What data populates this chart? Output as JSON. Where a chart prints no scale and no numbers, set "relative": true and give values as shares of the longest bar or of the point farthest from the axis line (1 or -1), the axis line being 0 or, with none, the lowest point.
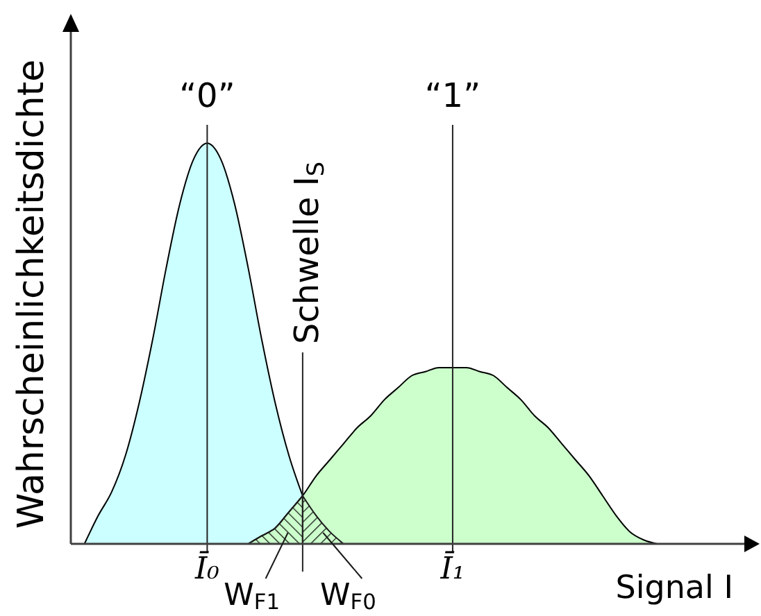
{
  "chart_data": {
    "type": "area",
    "relative": true,
    "grid": "x",
    "legend": "bottom",
    "xlabel": "Signal I",
    "ylabel": "Wahrscheinlichkeitsdichte",
    "categories": [
      null,
      null,
      null,
      null,
      null,
      null,
      null,
      null,
      null,
      null,
      "Ī₀",
      null,
      null,
      null,
      null,
      null,
      null,
      null,
      null,
      null,
      null,
      null,
      null,
      null,
      null,
      null,
      null,
      null,
      "Ī₁",
      null,
      null,
      null,
      null,
      null,
      null,
      null,
      null,
      null,
      null,
      null,
      null,
      null,
      null,
      null,
      null,
      null,
      null,
      null,
      null,
      null,
      null
    ],
    "series": [
      {
        "color": "#ccffff",
        "values": [
          null,
          0,
          0.07,
          0.13,
          0.22,
          0.35,
          0.51,
          0.69,
          0.85,
          0.96,
          1,
          0.96,
          0.85,
          0.69,
          0.51,
          0.35,
          0.22,
          0.12,
          null,
          null,
          null,
          null,
          null,
          null,
          null,
          null,
          null,
          null,
          null,
          null,
          null,
          null,
          null,
          null,
          null,
          null,
          null,
          null,
          null,
          null,
          null,
          null,
          null,
          null,
          null,
          null,
          null,
          null,
          null,
          null,
          null
        ]
      },
      {
        "color": "#ccffcc",
        "values": [
          null,
          null,
          null,
          null,
          null,
          null,
          null,
          null,
          null,
          null,
          null,
          null,
          null,
          0,
          0.02,
          0.04,
          0.08,
          0.12,
          0.17,
          0.21,
          0.25,
          0.29,
          0.32,
          0.36,
          0.39,
          0.42,
          0.43,
          0.44,
          0.44,
          0.44,
          0.43,
          0.42,
          0.39,
          0.36,
          0.32,
          0.29,
          0.25,
          0.21,
          0.17,
          0.12,
          0.07,
          0.03,
          0.01,
          0,
          null,
          null,
          null,
          null,
          null,
          null,
          null
        ]
      },
      {
        "name": "W$_{F1}$",
        "color": "#1a1a1a",
        "values": [
          null,
          null,
          null,
          null,
          null,
          null,
          null,
          null,
          null,
          null,
          null,
          null,
          null,
          0,
          0.02,
          0.04,
          0.08,
          0.12,
          null,
          null,
          null,
          null,
          null,
          null,
          null,
          null,
          null,
          null,
          null,
          null,
          null,
          null,
          null,
          null,
          null,
          null,
          null,
          null,
          null,
          null,
          null,
          null,
          null,
          null,
          null,
          null,
          null,
          null,
          null,
          null,
          null
        ]
      },
      {
        "name": "W$_{F0}$",
        "color": "#1a1a1a",
        "values": [
          null,
          null,
          null,
          null,
          null,
          null,
          null,
          null,
          null,
          null,
          null,
          null,
          null,
          null,
          null,
          null,
          null,
          0.12,
          0.07,
          0.03,
          0,
          null,
          null,
          null,
          null,
          null,
          null,
          null,
          null,
          null,
          null,
          null,
          null,
          null,
          null,
          null,
          null,
          null,
          null,
          null,
          null,
          null,
          null,
          null,
          null,
          null,
          null,
          null,
          null,
          null,
          null
        ]
      }
    ],
    "annotations": [
      "“0”",
      "“1”",
      "Schwelle I$_{S}$"
    ]
  }
}
